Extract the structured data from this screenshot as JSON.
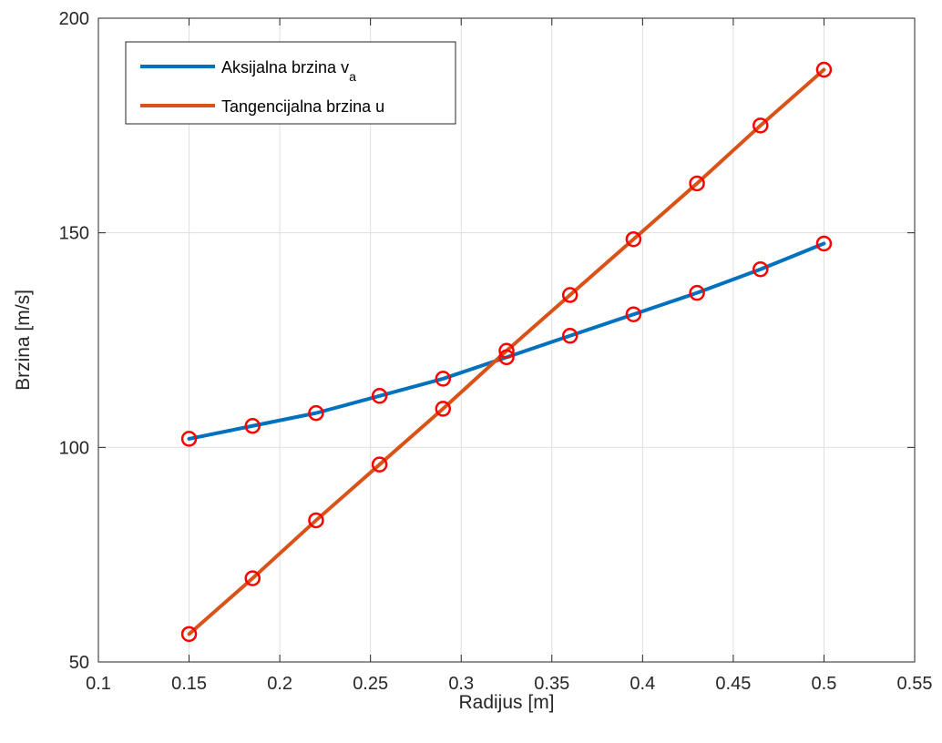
{
  "chart_data": {
    "type": "line",
    "title": "",
    "xlabel": "Radijus [m]",
    "ylabel": "Brzina [m/s]",
    "xlim": [
      0.1,
      0.55
    ],
    "ylim": [
      50,
      200
    ],
    "xticks": [
      0.1,
      0.15,
      0.2,
      0.25,
      0.3,
      0.35,
      0.4,
      0.45,
      0.5,
      0.55
    ],
    "yticks": [
      50,
      100,
      150,
      200
    ],
    "grid": true,
    "legend_position": "top-left",
    "x": [
      0.15,
      0.185,
      0.22,
      0.255,
      0.29,
      0.325,
      0.36,
      0.395,
      0.43,
      0.465,
      0.5
    ],
    "series": [
      {
        "name": "Aksijalna brzina v",
        "name_subscript": "a",
        "color": "#0072BD",
        "values": [
          102,
          105,
          108,
          112,
          116,
          121,
          126,
          131,
          136,
          141.5,
          147.5
        ]
      },
      {
        "name": "Tangencijalna brzina u",
        "color": "#D95319",
        "values": [
          56.5,
          69.5,
          83,
          96,
          109,
          122.5,
          135.5,
          148.5,
          161.5,
          175,
          188
        ]
      }
    ],
    "marker": {
      "shape": "circle",
      "color": "#FF0000"
    }
  }
}
